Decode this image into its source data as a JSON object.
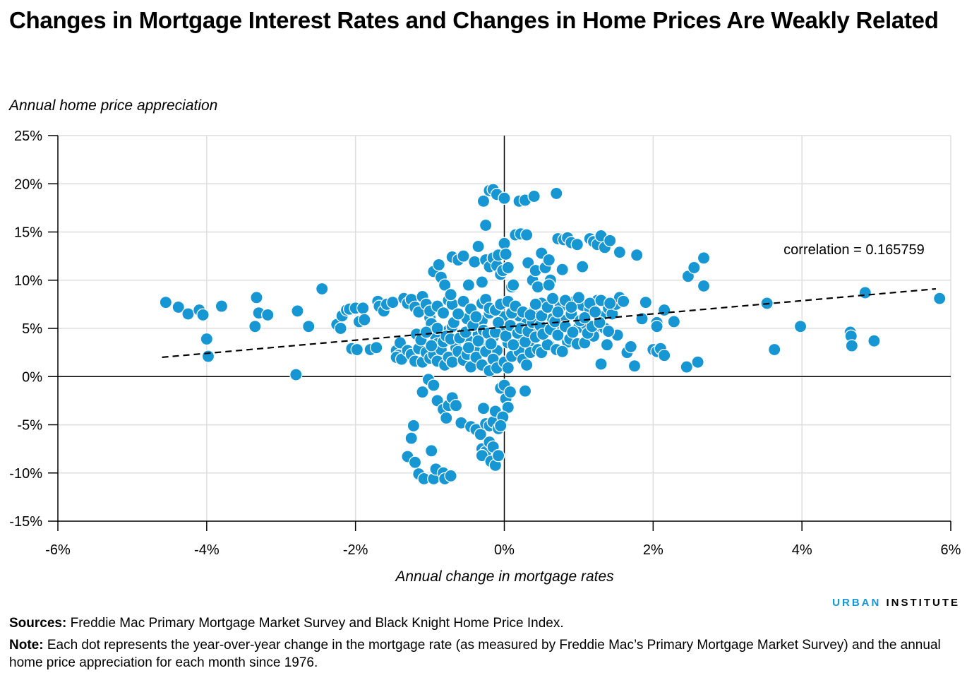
{
  "header": {
    "title": "Changes in Mortgage Interest Rates and Changes in Home Prices Are Weakly Related"
  },
  "footer": {
    "brand_part1": "URBAN",
    "brand_part2": "INSTITUTE",
    "sources_label": "Sources:",
    "sources_text": "Freddie Mac Primary Mortgage Market Survey and Black Knight Home Price Index.",
    "note_label": "Note:",
    "note_text": "Each dot represents the year-over-year change in the mortgage rate (as measured by Freddie Mac’s Primary Mortgage Market Survey) and the annual home price appreciation for each month since 1976."
  },
  "chart_data": {
    "type": "scatter",
    "title": "Changes in Mortgage Interest Rates and Changes in Home Prices Are Weakly Related",
    "xlabel": "Annual change in mortgage rates",
    "ylabel": "Annual home price appreciation",
    "xlim": [
      -6,
      6
    ],
    "ylim": [
      -15,
      25
    ],
    "x_ticks": [
      -6,
      -4,
      -2,
      0,
      2,
      4,
      6
    ],
    "y_ticks": [
      -15,
      -10,
      -5,
      0,
      5,
      10,
      15,
      20,
      25
    ],
    "x_tick_labels": [
      "-6%",
      "-4%",
      "-2%",
      "0%",
      "2%",
      "4%",
      "6%"
    ],
    "y_tick_labels": [
      "-15%",
      "-10%",
      "-5%",
      "0%",
      "5%",
      "10%",
      "15%",
      "20%",
      "25%"
    ],
    "grid": true,
    "point_color": "#1696d2",
    "point_stroke": "#ffffff",
    "annotation": {
      "text": "correlation = 0.165759",
      "x": 4.7,
      "y": 12.7
    },
    "trendline": {
      "x": [
        -4.6,
        5.8
      ],
      "y": [
        2.0,
        9.1
      ],
      "style": "dashed"
    },
    "points": [
      [
        -4.55,
        7.7
      ],
      [
        -4.38,
        7.2
      ],
      [
        -4.25,
        6.5
      ],
      [
        -4.1,
        6.9
      ],
      [
        -4.05,
        6.4
      ],
      [
        -4.0,
        3.9
      ],
      [
        -3.98,
        2.1
      ],
      [
        -3.8,
        7.3
      ],
      [
        -3.33,
        8.2
      ],
      [
        -3.35,
        5.2
      ],
      [
        -3.3,
        6.6
      ],
      [
        -3.18,
        6.4
      ],
      [
        -2.8,
        0.2
      ],
      [
        -2.78,
        6.8
      ],
      [
        -2.63,
        5.2
      ],
      [
        -2.45,
        9.1
      ],
      [
        -2.25,
        5.4
      ],
      [
        -2.2,
        5.0
      ],
      [
        -2.18,
        6.3
      ],
      [
        -2.12,
        6.9
      ],
      [
        -2.08,
        7.0
      ],
      [
        -2.05,
        2.9
      ],
      [
        -2.0,
        7.1
      ],
      [
        -1.98,
        2.8
      ],
      [
        -1.95,
        5.7
      ],
      [
        -1.9,
        7.1
      ],
      [
        -1.88,
        5.9
      ],
      [
        -1.8,
        2.8
      ],
      [
        -1.7,
        7.8
      ],
      [
        -1.68,
        7.3
      ],
      [
        -1.62,
        6.8
      ],
      [
        -1.72,
        3.0
      ],
      [
        -1.58,
        7.5
      ],
      [
        -1.5,
        7.7
      ],
      [
        -1.45,
        2.7
      ],
      [
        -1.42,
        2.2
      ],
      [
        -1.4,
        3.5
      ],
      [
        -1.35,
        8.1
      ],
      [
        -1.3,
        7.6
      ],
      [
        -1.25,
        8.0
      ],
      [
        -1.2,
        7.2
      ],
      [
        -1.18,
        4.4
      ],
      [
        -1.15,
        6.7
      ],
      [
        -1.1,
        8.3
      ],
      [
        -1.05,
        7.5
      ],
      [
        -1.0,
        6.1
      ],
      [
        -0.98,
        5.5
      ],
      [
        -0.95,
        4.7
      ],
      [
        -0.92,
        4.0
      ],
      [
        -0.9,
        3.4
      ],
      [
        -0.88,
        2.9
      ],
      [
        -0.85,
        2.4
      ],
      [
        -0.8,
        1.9
      ],
      [
        -0.75,
        4.8
      ],
      [
        -0.7,
        5.2
      ],
      [
        -0.65,
        3.0
      ],
      [
        -0.6,
        2.2
      ],
      [
        -0.55,
        4.5
      ],
      [
        -0.5,
        6.0
      ],
      [
        -0.45,
        3.6
      ],
      [
        -0.4,
        2.9
      ],
      [
        -0.35,
        4.4
      ],
      [
        -0.3,
        5.8
      ],
      [
        -0.25,
        3.2
      ],
      [
        -0.2,
        6.6
      ],
      [
        -0.15,
        4.1
      ],
      [
        -0.1,
        2.7
      ],
      [
        -0.05,
        5.0
      ],
      [
        0.0,
        6.2
      ],
      [
        0.05,
        3.5
      ],
      [
        0.1,
        4.8
      ],
      [
        0.15,
        2.9
      ],
      [
        0.2,
        6.3
      ],
      [
        0.25,
        4.0
      ],
      [
        0.3,
        5.5
      ],
      [
        0.35,
        3.0
      ],
      [
        0.4,
        6.8
      ],
      [
        0.45,
        4.5
      ],
      [
        0.5,
        7.6
      ],
      [
        0.55,
        5.0
      ],
      [
        0.6,
        3.3
      ],
      [
        0.65,
        6.0
      ],
      [
        0.7,
        4.6
      ],
      [
        0.75,
        7.2
      ],
      [
        0.8,
        5.8
      ],
      [
        0.85,
        3.6
      ],
      [
        0.9,
        6.5
      ],
      [
        0.95,
        7.8
      ],
      [
        1.0,
        5.1
      ],
      [
        1.05,
        7.4
      ],
      [
        1.1,
        5.4
      ],
      [
        1.15,
        7.0
      ],
      [
        1.2,
        4.8
      ],
      [
        1.25,
        7.9
      ],
      [
        1.3,
        6.2
      ],
      [
        1.35,
        5.0
      ],
      [
        1.4,
        7.1
      ],
      [
        1.45,
        6.5
      ],
      [
        1.5,
        7.5
      ],
      [
        1.55,
        8.2
      ],
      [
        1.6,
        7.8
      ],
      [
        1.65,
        2.5
      ],
      [
        1.7,
        3.1
      ],
      [
        1.75,
        1.1
      ],
      [
        1.85,
        6.0
      ],
      [
        1.9,
        7.7
      ],
      [
        2.0,
        2.8
      ],
      [
        2.05,
        5.6
      ],
      [
        2.05,
        2.6
      ],
      [
        2.1,
        2.9
      ],
      [
        2.15,
        2.2
      ],
      [
        2.15,
        6.9
      ],
      [
        2.05,
        5.2
      ],
      [
        2.28,
        5.7
      ],
      [
        2.45,
        1.0
      ],
      [
        2.47,
        10.4
      ],
      [
        2.55,
        11.3
      ],
      [
        2.6,
        1.5
      ],
      [
        2.68,
        12.3
      ],
      [
        2.68,
        9.4
      ],
      [
        3.53,
        7.6
      ],
      [
        3.63,
        2.8
      ],
      [
        3.98,
        5.2
      ],
      [
        4.65,
        4.6
      ],
      [
        4.66,
        4.2
      ],
      [
        4.67,
        3.2
      ],
      [
        4.85,
        8.7
      ],
      [
        4.97,
        3.7
      ],
      [
        5.85,
        8.1
      ],
      [
        -1.45,
        2.0
      ],
      [
        -1.38,
        1.8
      ],
      [
        -1.3,
        2.7
      ],
      [
        -1.25,
        2.3
      ],
      [
        -1.2,
        1.6
      ],
      [
        -1.15,
        2.9
      ],
      [
        -1.1,
        1.5
      ],
      [
        -1.05,
        2.5
      ],
      [
        -1.0,
        1.9
      ],
      [
        -0.95,
        2.3
      ],
      [
        -0.9,
        1.6
      ],
      [
        -0.85,
        2.8
      ],
      [
        -0.8,
        1.2
      ],
      [
        -0.75,
        2.0
      ],
      [
        -0.7,
        1.5
      ],
      [
        -0.62,
        2.6
      ],
      [
        -0.55,
        1.7
      ],
      [
        -0.5,
        2.3
      ],
      [
        -0.45,
        1.0
      ],
      [
        -0.38,
        2.0
      ],
      [
        -0.3,
        1.2
      ],
      [
        -0.25,
        2.6
      ],
      [
        -0.2,
        0.6
      ],
      [
        -0.15,
        1.8
      ],
      [
        -0.1,
        0.9
      ],
      [
        0.0,
        1.5
      ],
      [
        0.05,
        0.9
      ],
      [
        0.1,
        2.1
      ],
      [
        0.2,
        2.6
      ],
      [
        0.25,
        1.8
      ],
      [
        0.3,
        1.2
      ],
      [
        0.35,
        2.5
      ],
      [
        0.45,
        2.8
      ],
      [
        0.5,
        2.5
      ],
      [
        0.58,
        3.3
      ],
      [
        0.7,
        2.8
      ],
      [
        0.78,
        2.6
      ],
      [
        0.88,
        3.9
      ],
      [
        0.98,
        3.4
      ],
      [
        1.08,
        3.5
      ],
      [
        1.2,
        4.2
      ],
      [
        1.3,
        1.3
      ],
      [
        1.38,
        3.3
      ],
      [
        1.52,
        4.3
      ],
      [
        -1.12,
        3.8
      ],
      [
        -1.05,
        4.6
      ],
      [
        -0.98,
        3.2
      ],
      [
        -0.9,
        5.0
      ],
      [
        -0.82,
        3.6
      ],
      [
        -0.78,
        4.2
      ],
      [
        -0.72,
        3.9
      ],
      [
        -0.68,
        5.6
      ],
      [
        -0.6,
        4.0
      ],
      [
        -0.52,
        4.6
      ],
      [
        -0.48,
        3.0
      ],
      [
        -0.42,
        5.3
      ],
      [
        -0.35,
        3.7
      ],
      [
        -0.28,
        4.8
      ],
      [
        -0.22,
        4.5
      ],
      [
        -0.18,
        3.4
      ],
      [
        -0.12,
        4.6
      ],
      [
        -0.08,
        5.6
      ],
      [
        0.02,
        4.2
      ],
      [
        0.08,
        5.3
      ],
      [
        0.12,
        3.3
      ],
      [
        0.18,
        4.5
      ],
      [
        0.22,
        5.0
      ],
      [
        0.28,
        3.6
      ],
      [
        0.32,
        4.7
      ],
      [
        0.38,
        5.6
      ],
      [
        0.42,
        4.1
      ],
      [
        0.48,
        5.3
      ],
      [
        0.52,
        4.4
      ],
      [
        0.62,
        4.9
      ],
      [
        0.68,
        5.7
      ],
      [
        0.72,
        4.3
      ],
      [
        0.82,
        5.2
      ],
      [
        0.92,
        4.6
      ],
      [
        1.02,
        5.8
      ],
      [
        1.12,
        4.5
      ],
      [
        1.18,
        5.2
      ],
      [
        1.28,
        5.6
      ],
      [
        1.4,
        4.7
      ],
      [
        -1.0,
        6.8
      ],
      [
        -0.9,
        7.3
      ],
      [
        -0.82,
        6.6
      ],
      [
        -0.75,
        7.9
      ],
      [
        -0.7,
        7.5
      ],
      [
        -0.62,
        6.5
      ],
      [
        -0.55,
        7.8
      ],
      [
        -0.45,
        7.0
      ],
      [
        -0.38,
        6.2
      ],
      [
        -0.3,
        7.6
      ],
      [
        -0.25,
        8.0
      ],
      [
        -0.2,
        7.1
      ],
      [
        -0.12,
        6.9
      ],
      [
        -0.05,
        7.5
      ],
      [
        0.05,
        7.8
      ],
      [
        0.1,
        6.6
      ],
      [
        0.15,
        7.3
      ],
      [
        0.25,
        6.7
      ],
      [
        0.35,
        6.4
      ],
      [
        0.42,
        7.5
      ],
      [
        0.5,
        6.3
      ],
      [
        0.58,
        7.2
      ],
      [
        0.65,
        8.1
      ],
      [
        0.72,
        6.7
      ],
      [
        0.82,
        7.9
      ],
      [
        0.9,
        7.2
      ],
      [
        1.0,
        8.2
      ],
      [
        1.08,
        6.1
      ],
      [
        1.15,
        7.6
      ],
      [
        1.22,
        6.7
      ],
      [
        1.3,
        7.9
      ],
      [
        1.42,
        7.6
      ],
      [
        -0.95,
        10.9
      ],
      [
        -0.88,
        11.6
      ],
      [
        -0.85,
        10.3
      ],
      [
        -0.8,
        9.5
      ],
      [
        -0.72,
        8.5
      ],
      [
        -0.7,
        12.4
      ],
      [
        -0.62,
        12.1
      ],
      [
        -0.55,
        12.5
      ],
      [
        -0.48,
        9.5
      ],
      [
        -0.4,
        11.9
      ],
      [
        -0.35,
        13.5
      ],
      [
        -0.3,
        9.8
      ],
      [
        -0.25,
        12.1
      ],
      [
        -0.2,
        11.4
      ],
      [
        -0.15,
        12.3
      ],
      [
        -0.1,
        11.5
      ],
      [
        -0.08,
        12.6
      ],
      [
        -0.05,
        10.6
      ],
      [
        -0.02,
        11.0
      ],
      [
        0.0,
        13.8
      ],
      [
        0.02,
        12.7
      ],
      [
        0.05,
        11.3
      ],
      [
        0.1,
        9.3
      ],
      [
        0.12,
        9.5
      ],
      [
        0.15,
        14.7
      ],
      [
        0.22,
        14.8
      ],
      [
        0.3,
        14.7
      ],
      [
        0.32,
        11.8
      ],
      [
        0.38,
        10.0
      ],
      [
        0.42,
        11.0
      ],
      [
        0.5,
        12.8
      ],
      [
        0.55,
        11.3
      ],
      [
        0.6,
        12.1
      ],
      [
        0.62,
        10.0
      ],
      [
        0.72,
        14.3
      ],
      [
        0.78,
        11.1
      ],
      [
        0.8,
        14.2
      ],
      [
        0.85,
        14.4
      ],
      [
        0.9,
        13.9
      ],
      [
        0.98,
        13.7
      ],
      [
        1.05,
        11.4
      ],
      [
        1.15,
        14.3
      ],
      [
        1.2,
        14.0
      ],
      [
        1.25,
        13.7
      ],
      [
        1.3,
        14.6
      ],
      [
        1.35,
        13.4
      ],
      [
        1.42,
        14.1
      ],
      [
        1.55,
        12.9
      ],
      [
        1.78,
        12.6
      ],
      [
        0.45,
        9.3
      ],
      [
        0.6,
        9.5
      ],
      [
        -0.28,
        18.2
      ],
      [
        -0.2,
        19.3
      ],
      [
        -0.15,
        19.4
      ],
      [
        -0.1,
        18.9
      ],
      [
        0.0,
        18.5
      ],
      [
        0.2,
        18.2
      ],
      [
        0.28,
        18.3
      ],
      [
        0.4,
        18.7
      ],
      [
        0.7,
        19.0
      ],
      [
        -0.25,
        15.7
      ],
      [
        -1.1,
        -1.6
      ],
      [
        -1.02,
        -0.3
      ],
      [
        -0.95,
        -0.9
      ],
      [
        -0.9,
        -2.5
      ],
      [
        -0.82,
        -3.4
      ],
      [
        -0.78,
        -4.3
      ],
      [
        -0.75,
        -3.0
      ],
      [
        -0.7,
        -2.2
      ],
      [
        -0.65,
        -3.0
      ],
      [
        -0.58,
        -4.8
      ],
      [
        -0.45,
        -5.2
      ],
      [
        -0.38,
        -5.5
      ],
      [
        -0.32,
        -6.0
      ],
      [
        -0.28,
        -3.3
      ],
      [
        -0.25,
        -4.9
      ],
      [
        -0.2,
        -5.1
      ],
      [
        -0.15,
        -4.7
      ],
      [
        -0.12,
        -3.6
      ],
      [
        -0.08,
        -5.4
      ],
      [
        -0.05,
        -1.2
      ],
      [
        0.0,
        -0.9
      ],
      [
        0.02,
        -2.3
      ],
      [
        0.05,
        -3.2
      ],
      [
        0.08,
        -1.6
      ],
      [
        -0.02,
        -4.2
      ],
      [
        -0.3,
        -7.5
      ],
      [
        -0.25,
        -7.8
      ],
      [
        -0.2,
        -6.8
      ],
      [
        -0.15,
        -7.3
      ],
      [
        -0.3,
        -8.2
      ],
      [
        -0.18,
        -8.8
      ],
      [
        -0.12,
        -9.2
      ],
      [
        -0.08,
        -8.2
      ],
      [
        -0.05,
        -5.1
      ],
      [
        0.28,
        -1.5
      ],
      [
        -1.22,
        -5.1
      ],
      [
        -1.25,
        -6.4
      ],
      [
        -1.3,
        -8.3
      ],
      [
        -1.2,
        -8.9
      ],
      [
        -1.15,
        -10.1
      ],
      [
        -1.08,
        -10.6
      ],
      [
        -0.95,
        -10.6
      ],
      [
        -0.92,
        -9.6
      ],
      [
        -0.98,
        -7.7
      ],
      [
        -0.82,
        -10.0
      ],
      [
        -0.8,
        -10.6
      ],
      [
        -0.72,
        -10.3
      ]
    ]
  }
}
